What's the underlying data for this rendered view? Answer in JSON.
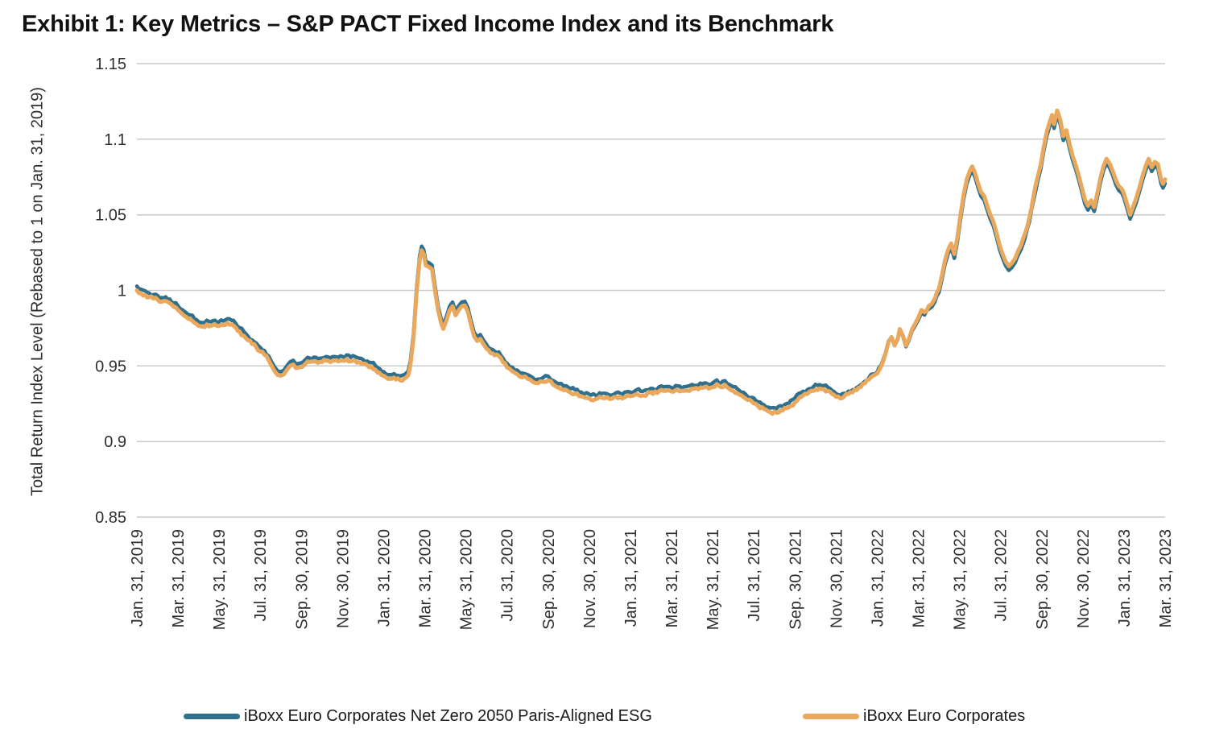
{
  "title": "Exhibit 1: Key Metrics – S&P PACT Fixed Income Index and its Benchmark",
  "chart_data": {
    "type": "line",
    "title": "Exhibit 1: Key Metrics – S&P PACT Fixed Income Index and its Benchmark",
    "xlabel": "",
    "ylabel": "Total Return Index Level (Rebased to 1 on Jan. 31, 2019)",
    "ylim": [
      0.85,
      1.15
    ],
    "yticks": [
      1.15,
      1.1,
      1.05,
      1,
      0.95,
      0.9,
      0.85
    ],
    "ytick_labels": [
      "1.15",
      "1.1",
      "1.05",
      "1",
      "0.95",
      "0.9",
      "0.85"
    ],
    "x_unit": "months since Jan. 31, 2019 (tick every 2 months)",
    "x_range": [
      0,
      50
    ],
    "xtick_labels": [
      "Jan. 31, 2019",
      "Mar. 31, 2019",
      "May. 31, 2019",
      "Jul. 31, 2019",
      "Sep. 30, 2019",
      "Nov. 30, 2019",
      "Jan. 31, 2020",
      "Mar. 31, 2020",
      "May. 31, 2020",
      "Jul. 31, 2020",
      "Sep. 30, 2020",
      "Nov. 30, 2020",
      "Jan. 31, 2021",
      "Mar. 31, 2021",
      "May. 31, 2021",
      "Jul. 31, 2021",
      "Sep. 30, 2021",
      "Nov. 30, 2021",
      "Jan. 31, 2022",
      "Mar. 31, 2022",
      "May. 31, 2022",
      "Jul. 31, 2022",
      "Sep. 30, 2022",
      "Nov. 30, 2022",
      "Jan. 31, 2023",
      "Mar. 31, 2023"
    ],
    "grid": "horizontal",
    "legend_position": "bottom",
    "colors": {
      "grid": "#c9c9c9",
      "text": "#2e2e2e",
      "title": "#111111"
    },
    "style": {
      "daily_noise": 0.0011,
      "orange_stroke": 5,
      "blue_stroke": 4.5
    },
    "series": [
      {
        "name": "iBoxx Euro Corporates Net Zero 2050 Paris-Aligned ESG",
        "color": "#30708C",
        "derived": {
          "base": "iBoxx Euro Corporates",
          "offset_breakpoints": [
            [
              0,
              0.0027
            ],
            [
              33,
              0.0027
            ],
            [
              36,
              0.001
            ],
            [
              38,
              -0.0015
            ],
            [
              39.5,
              -0.0028
            ],
            [
              50,
              -0.0028
            ]
          ]
        }
      },
      {
        "name": "iBoxx Euro Corporates",
        "color": "#E9A85C",
        "points": [
          [
            0,
            1.0
          ],
          [
            0.2,
            0.998
          ],
          [
            0.4,
            0.997
          ],
          [
            0.6,
            0.9955
          ],
          [
            0.8,
            0.9945
          ],
          [
            1,
            0.994
          ],
          [
            1.2,
            0.9925
          ],
          [
            1.4,
            0.993
          ],
          [
            1.6,
            0.9915
          ],
          [
            1.8,
            0.989
          ],
          [
            2,
            0.987
          ],
          [
            2.2,
            0.9845
          ],
          [
            2.4,
            0.9825
          ],
          [
            2.6,
            0.981
          ],
          [
            2.8,
            0.9785
          ],
          [
            3,
            0.9765
          ],
          [
            3.2,
            0.976
          ],
          [
            3.4,
            0.9775
          ],
          [
            3.6,
            0.9765
          ],
          [
            3.8,
            0.9775
          ],
          [
            4,
            0.9765
          ],
          [
            4.2,
            0.977
          ],
          [
            4.4,
            0.9785
          ],
          [
            4.6,
            0.9775
          ],
          [
            4.8,
            0.9755
          ],
          [
            5,
            0.9725
          ],
          [
            5.2,
            0.97
          ],
          [
            5.4,
            0.967
          ],
          [
            5.6,
            0.9645
          ],
          [
            5.8,
            0.9625
          ],
          [
            6,
            0.9595
          ],
          [
            6.2,
            0.9575
          ],
          [
            6.4,
            0.954
          ],
          [
            6.55,
            0.95
          ],
          [
            6.7,
            0.9465
          ],
          [
            6.85,
            0.944
          ],
          [
            7,
            0.9435
          ],
          [
            7.15,
            0.9445
          ],
          [
            7.3,
            0.9475
          ],
          [
            7.45,
            0.95
          ],
          [
            7.6,
            0.951
          ],
          [
            7.75,
            0.9485
          ],
          [
            7.9,
            0.949
          ],
          [
            8.05,
            0.9495
          ],
          [
            8.2,
            0.9515
          ],
          [
            8.4,
            0.9525
          ],
          [
            8.6,
            0.953
          ],
          [
            8.8,
            0.952
          ],
          [
            9,
            0.9525
          ],
          [
            9.2,
            0.9535
          ],
          [
            9.4,
            0.9525
          ],
          [
            9.6,
            0.9535
          ],
          [
            9.8,
            0.953
          ],
          [
            10,
            0.9535
          ],
          [
            10.2,
            0.9545
          ],
          [
            10.4,
            0.953
          ],
          [
            10.6,
            0.9535
          ],
          [
            10.8,
            0.9525
          ],
          [
            11,
            0.9515
          ],
          [
            11.2,
            0.9505
          ],
          [
            11.4,
            0.9495
          ],
          [
            11.6,
            0.9475
          ],
          [
            11.8,
            0.9455
          ],
          [
            12,
            0.9435
          ],
          [
            12.2,
            0.9415
          ],
          [
            12.4,
            0.9415
          ],
          [
            12.6,
            0.941
          ],
          [
            12.8,
            0.9405
          ],
          [
            13,
            0.9415
          ],
          [
            13.1,
            0.9425
          ],
          [
            13.2,
            0.944
          ],
          [
            13.3,
            0.9505
          ],
          [
            13.45,
            0.968
          ],
          [
            13.6,
            0.998
          ],
          [
            13.75,
            1.02
          ],
          [
            13.85,
            1.0265
          ],
          [
            13.95,
            1.024
          ],
          [
            14.05,
            1.0165
          ],
          [
            14.2,
            1.0155
          ],
          [
            14.35,
            1.014
          ],
          [
            14.5,
            1.0
          ],
          [
            14.65,
            0.9865
          ],
          [
            14.8,
            0.978
          ],
          [
            14.9,
            0.9745
          ],
          [
            15.05,
            0.98
          ],
          [
            15.2,
            0.9865
          ],
          [
            15.35,
            0.9895
          ],
          [
            15.5,
            0.9835
          ],
          [
            15.65,
            0.987
          ],
          [
            15.8,
            0.9895
          ],
          [
            15.95,
            0.99
          ],
          [
            16.1,
            0.9855
          ],
          [
            16.25,
            0.977
          ],
          [
            16.4,
            0.9695
          ],
          [
            16.55,
            0.9665
          ],
          [
            16.7,
            0.968
          ],
          [
            16.85,
            0.9645
          ],
          [
            17,
            0.9615
          ],
          [
            17.2,
            0.9585
          ],
          [
            17.4,
            0.957
          ],
          [
            17.6,
            0.9565
          ],
          [
            17.8,
            0.9525
          ],
          [
            18,
            0.949
          ],
          [
            18.25,
            0.9465
          ],
          [
            18.5,
            0.9445
          ],
          [
            18.75,
            0.9425
          ],
          [
            19,
            0.9415
          ],
          [
            19.25,
            0.9395
          ],
          [
            19.5,
            0.9385
          ],
          [
            19.75,
            0.9395
          ],
          [
            20,
            0.9405
          ],
          [
            20.25,
            0.9375
          ],
          [
            20.5,
            0.9355
          ],
          [
            20.75,
            0.934
          ],
          [
            21,
            0.933
          ],
          [
            21.3,
            0.9315
          ],
          [
            21.6,
            0.93
          ],
          [
            22,
            0.9285
          ],
          [
            22.3,
            0.928
          ],
          [
            22.6,
            0.929
          ],
          [
            23,
            0.928
          ],
          [
            23.3,
            0.9295
          ],
          [
            23.6,
            0.9285
          ],
          [
            24,
            0.93
          ],
          [
            24.3,
            0.9315
          ],
          [
            24.6,
            0.9305
          ],
          [
            25,
            0.9325
          ],
          [
            25.3,
            0.932
          ],
          [
            25.6,
            0.9335
          ],
          [
            26,
            0.933
          ],
          [
            26.3,
            0.934
          ],
          [
            26.6,
            0.9335
          ],
          [
            27,
            0.935
          ],
          [
            27.3,
            0.9345
          ],
          [
            27.6,
            0.936
          ],
          [
            27.8,
            0.935
          ],
          [
            28,
            0.936
          ],
          [
            28.2,
            0.938
          ],
          [
            28.4,
            0.936
          ],
          [
            28.6,
            0.9375
          ],
          [
            28.8,
            0.935
          ],
          [
            29,
            0.9335
          ],
          [
            29.3,
            0.931
          ],
          [
            29.6,
            0.9285
          ],
          [
            29.9,
            0.9265
          ],
          [
            30.2,
            0.9235
          ],
          [
            30.5,
            0.9215
          ],
          [
            30.8,
            0.9195
          ],
          [
            31.1,
            0.919
          ],
          [
            31.4,
            0.9205
          ],
          [
            31.7,
            0.9225
          ],
          [
            32,
            0.926
          ],
          [
            32.3,
            0.9295
          ],
          [
            32.6,
            0.9315
          ],
          [
            32.9,
            0.9335
          ],
          [
            33.2,
            0.935
          ],
          [
            33.4,
            0.9345
          ],
          [
            33.6,
            0.9335
          ],
          [
            33.8,
            0.9315
          ],
          [
            34,
            0.9295
          ],
          [
            34.2,
            0.9285
          ],
          [
            34.4,
            0.93
          ],
          [
            34.6,
            0.9315
          ],
          [
            34.8,
            0.9325
          ],
          [
            35,
            0.934
          ],
          [
            35.2,
            0.936
          ],
          [
            35.4,
            0.9385
          ],
          [
            35.6,
            0.941
          ],
          [
            35.8,
            0.9435
          ],
          [
            36,
            0.945
          ],
          [
            36.2,
            0.95
          ],
          [
            36.4,
            0.958
          ],
          [
            36.55,
            0.966
          ],
          [
            36.7,
            0.969
          ],
          [
            36.85,
            0.9635
          ],
          [
            37,
            0.968
          ],
          [
            37.1,
            0.9745
          ],
          [
            37.25,
            0.97
          ],
          [
            37.4,
            0.9635
          ],
          [
            37.55,
            0.968
          ],
          [
            37.7,
            0.9745
          ],
          [
            37.85,
            0.978
          ],
          [
            38,
            0.982
          ],
          [
            38.15,
            0.987
          ],
          [
            38.3,
            0.9855
          ],
          [
            38.5,
            0.9895
          ],
          [
            38.65,
            0.991
          ],
          [
            38.8,
            0.9945
          ],
          [
            39,
            1.001
          ],
          [
            39.15,
            1.01
          ],
          [
            39.3,
            1.02
          ],
          [
            39.45,
            1.027
          ],
          [
            39.6,
            1.031
          ],
          [
            39.75,
            1.024
          ],
          [
            39.9,
            1.035
          ],
          [
            40.05,
            1.05
          ],
          [
            40.2,
            1.063
          ],
          [
            40.35,
            1.073
          ],
          [
            40.5,
            1.079
          ],
          [
            40.62,
            1.082
          ],
          [
            40.75,
            1.078
          ],
          [
            40.9,
            1.071
          ],
          [
            41.05,
            1.065
          ],
          [
            41.2,
            1.0625
          ],
          [
            41.35,
            1.056
          ],
          [
            41.5,
            1.05
          ],
          [
            41.65,
            1.0455
          ],
          [
            41.8,
            1.038
          ],
          [
            41.95,
            1.03
          ],
          [
            42.1,
            1.024
          ],
          [
            42.25,
            1.019
          ],
          [
            42.4,
            1.016
          ],
          [
            42.55,
            1.018
          ],
          [
            42.7,
            1.021
          ],
          [
            42.85,
            1.026
          ],
          [
            43,
            1.03
          ],
          [
            43.2,
            1.038
          ],
          [
            43.4,
            1.048
          ],
          [
            43.6,
            1.062
          ],
          [
            43.8,
            1.075
          ],
          [
            43.95,
            1.083
          ],
          [
            44.1,
            1.095
          ],
          [
            44.25,
            1.105
          ],
          [
            44.4,
            1.112
          ],
          [
            44.5,
            1.116
          ],
          [
            44.6,
            1.11
          ],
          [
            44.75,
            1.119
          ],
          [
            44.9,
            1.113
          ],
          [
            45.05,
            1.102
          ],
          [
            45.2,
            1.106
          ],
          [
            45.35,
            1.097
          ],
          [
            45.5,
            1.089
          ],
          [
            45.65,
            1.083
          ],
          [
            45.8,
            1.076
          ],
          [
            45.95,
            1.068
          ],
          [
            46.1,
            1.06
          ],
          [
            46.25,
            1.056
          ],
          [
            46.4,
            1.0595
          ],
          [
            46.55,
            1.055
          ],
          [
            46.7,
            1.064
          ],
          [
            46.85,
            1.074
          ],
          [
            47,
            1.082
          ],
          [
            47.15,
            1.087
          ],
          [
            47.3,
            1.084
          ],
          [
            47.45,
            1.079
          ],
          [
            47.6,
            1.073
          ],
          [
            47.75,
            1.069
          ],
          [
            47.9,
            1.067
          ],
          [
            48,
            1.064
          ],
          [
            48.15,
            1.057
          ],
          [
            48.3,
            1.05
          ],
          [
            48.45,
            1.0555
          ],
          [
            48.6,
            1.061
          ],
          [
            48.75,
            1.068
          ],
          [
            48.9,
            1.0755
          ],
          [
            49.05,
            1.082
          ],
          [
            49.2,
            1.087
          ],
          [
            49.35,
            1.0815
          ],
          [
            49.5,
            1.085
          ],
          [
            49.65,
            1.0835
          ],
          [
            49.8,
            1.0735
          ],
          [
            49.9,
            1.0705
          ],
          [
            50,
            1.0735
          ]
        ]
      }
    ]
  }
}
